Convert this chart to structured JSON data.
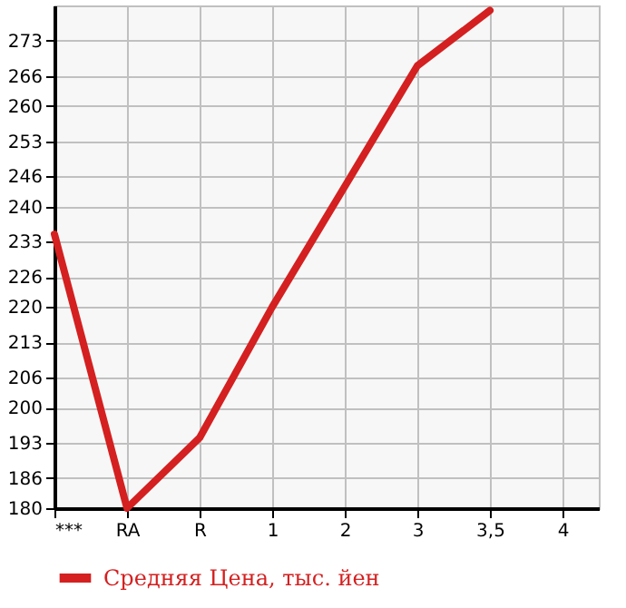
{
  "chart_data": {
    "type": "line",
    "categories": [
      "***",
      "RA",
      "R",
      "1",
      "2",
      "3",
      "3,5",
      "4"
    ],
    "series": [
      {
        "name": "Средняя Цена, тыс. йен",
        "color": "#d42020",
        "values": [
          234.5,
          180,
          194,
          220,
          244,
          268,
          279,
          null
        ]
      }
    ],
    "ylim": [
      180,
      280
    ],
    "yticks": [
      180,
      186,
      193,
      200,
      206,
      213,
      220,
      226,
      233,
      240,
      246,
      253,
      260,
      266,
      273
    ],
    "grid": true,
    "legend": "bottom left"
  }
}
